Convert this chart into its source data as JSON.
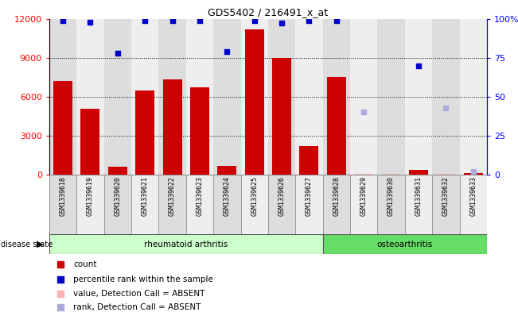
{
  "title": "GDS5402 / 216491_x_at",
  "samples": [
    "GSM1339618",
    "GSM1339619",
    "GSM1339620",
    "GSM1339621",
    "GSM1339622",
    "GSM1339623",
    "GSM1339624",
    "GSM1339625",
    "GSM1339626",
    "GSM1339627",
    "GSM1339628",
    "GSM1339629",
    "GSM1339630",
    "GSM1339631",
    "GSM1339632",
    "GSM1339633"
  ],
  "counts": [
    7200,
    5100,
    600,
    6450,
    7350,
    6700,
    700,
    11200,
    9000,
    2200,
    7500,
    70,
    80,
    400,
    60,
    100
  ],
  "counts_absent": [
    null,
    null,
    null,
    null,
    null,
    null,
    null,
    null,
    null,
    null,
    null,
    70,
    80,
    null,
    60,
    null
  ],
  "percentile_ranks": [
    99,
    98,
    78,
    99,
    99,
    99,
    79,
    99,
    97,
    99,
    99,
    null,
    null,
    70,
    null,
    null
  ],
  "percentile_ranks_absent": [
    null,
    null,
    null,
    null,
    null,
    null,
    null,
    null,
    null,
    null,
    null,
    40,
    null,
    null,
    43,
    2
  ],
  "rheumatoid_count": 10,
  "osteoarthritis_count": 6,
  "ylim_left": [
    0,
    12000
  ],
  "ylim_right": [
    0,
    100
  ],
  "yticks_left": [
    0,
    3000,
    6000,
    9000,
    12000
  ],
  "yticks_right": [
    0,
    25,
    50,
    75,
    100
  ],
  "bar_color": "#CC0000",
  "absent_bar_color": "#FFB3B3",
  "dot_color": "#0000CC",
  "absent_dot_color": "#AAAADD",
  "rheum_color": "#CCFFCC",
  "osteo_color": "#66DD66",
  "col_bg_even": "#DDDDDD",
  "col_bg_odd": "#EEEEEE",
  "legend_items": [
    {
      "label": "count",
      "color": "#CC0000",
      "marker": "s"
    },
    {
      "label": "percentile rank within the sample",
      "color": "#0000CC",
      "marker": "s"
    },
    {
      "label": "value, Detection Call = ABSENT",
      "color": "#FFB3B3",
      "marker": "s"
    },
    {
      "label": "rank, Detection Call = ABSENT",
      "color": "#AAAADD",
      "marker": "s"
    }
  ]
}
